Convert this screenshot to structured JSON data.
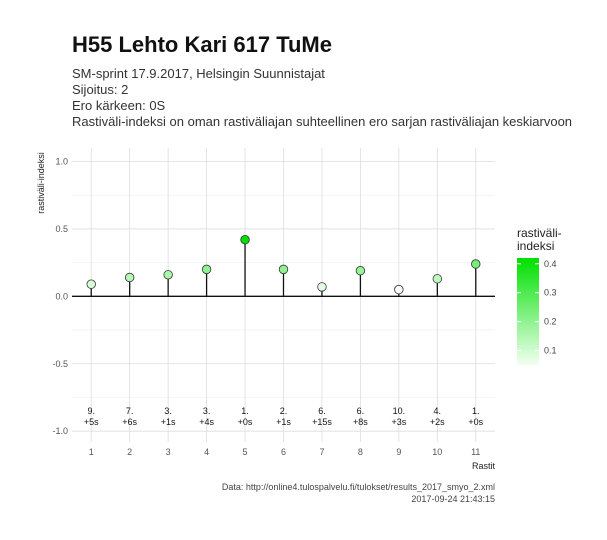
{
  "header": {
    "title": "H55 Lehto Kari 617 TuMe",
    "subtitle_lines": [
      "SM-sprint 17.9.2017, Helsingin Suunnistajat",
      "Sijoitus: 2",
      "Ero kärkeen: 0S",
      "Rastiväli-indeksi on oman rastiväliajan suhteellinen ero sarjan rastiväliajan keskiarvoon"
    ]
  },
  "chart_data": {
    "type": "scatter",
    "style": "lollipop",
    "xlabel": "Rastit",
    "ylabel": "rastiväli-indeksi",
    "x": [
      1,
      2,
      3,
      4,
      5,
      6,
      7,
      8,
      9,
      10,
      11
    ],
    "values": [
      0.09,
      0.14,
      0.16,
      0.2,
      0.42,
      0.2,
      0.07,
      0.19,
      0.05,
      0.13,
      0.24
    ],
    "ylim": [
      -1.0,
      1.0
    ],
    "yticks": [
      -1.0,
      -0.5,
      0.0,
      0.5,
      1.0
    ],
    "ytick_labels": [
      "-1.0",
      "-0.5",
      "0.0",
      "0.5",
      "1.0"
    ],
    "xticks": [
      1,
      2,
      3,
      4,
      5,
      6,
      7,
      8,
      9,
      10,
      11
    ],
    "bottom_labels": [
      {
        "rank": "9.",
        "diff": "+5s"
      },
      {
        "rank": "7.",
        "diff": "+6s"
      },
      {
        "rank": "3.",
        "diff": "+1s"
      },
      {
        "rank": "3.",
        "diff": "+4s"
      },
      {
        "rank": "1.",
        "diff": "+0s"
      },
      {
        "rank": "2.",
        "diff": "+1s"
      },
      {
        "rank": "6.",
        "diff": "+15s"
      },
      {
        "rank": "6.",
        "diff": "+8s"
      },
      {
        "rank": "10.",
        "diff": "+3s"
      },
      {
        "rank": "4.",
        "diff": "+2s"
      },
      {
        "rank": "1.",
        "diff": "+0s"
      }
    ],
    "grid": true,
    "legend": {
      "title_lines": [
        "rastiväli-",
        "indeksi"
      ],
      "position": "right",
      "range": [
        0.05,
        0.42
      ],
      "ticks": [
        0.1,
        0.2,
        0.3,
        0.4
      ],
      "tick_labels": [
        "0.1",
        "0.2",
        "0.3",
        "0.4"
      ],
      "color_low": "#f2fff2",
      "color_high": "#00e000"
    },
    "colors": {
      "stem": "#111111",
      "zero_line": "#111111",
      "point_stroke": "#333333",
      "grid_major": "#dddddd",
      "grid_minor": "#eeeeee"
    }
  },
  "caption": {
    "source": "Data: http://online4.tulospalvelu.fi/tulokset/results_2017_smyo_2.xml",
    "timestamp": "2017-09-24 21:43:15"
  }
}
